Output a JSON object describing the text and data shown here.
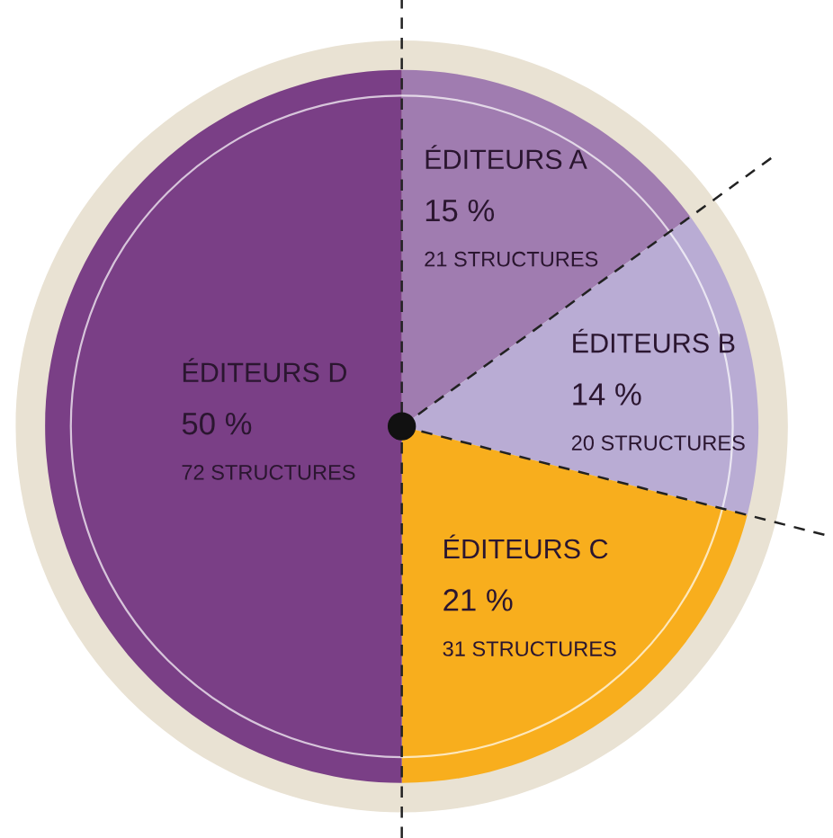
{
  "chart_data": {
    "type": "pie",
    "categories": [
      "ÉDITEURS A",
      "ÉDITEURS B",
      "ÉDITEURS C",
      "ÉDITEURS D"
    ],
    "values": [
      15,
      14,
      21,
      50
    ],
    "colors": [
      "#a07cb0",
      "#b9acd4",
      "#f8ae1d",
      "#7a3f86"
    ],
    "value_labels": [
      "15 %",
      "14 %",
      "21 %",
      "50 %"
    ],
    "annotations": [
      "21 STRUCTURES",
      "20 STRUCTURES",
      "31 STRUCTURES",
      "72 STRUCTURES"
    ],
    "legend": false
  }
}
